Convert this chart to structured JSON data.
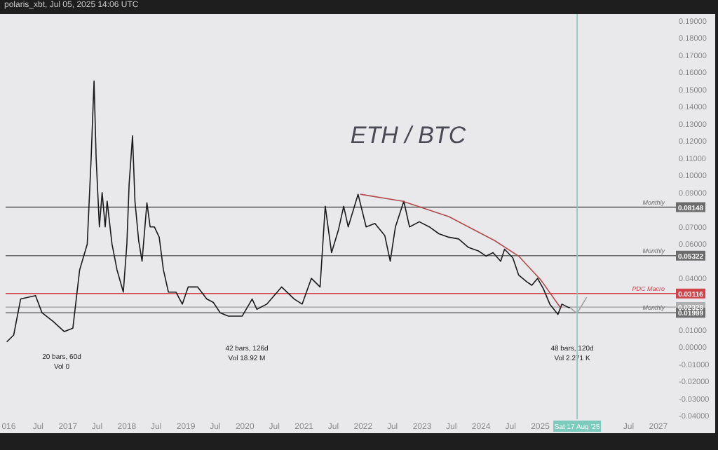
{
  "chart_data": {
    "type": "line",
    "title": "ETH / BTC",
    "xlim": [
      "2015-12-13",
      "2027-04-20"
    ],
    "xticks": [
      {
        "value": "2016-01-01",
        "label": "016"
      },
      {
        "value": "2016-07-01",
        "label": "Jul"
      },
      {
        "value": "2017-01-01",
        "label": "2017"
      },
      {
        "value": "2017-07-01",
        "label": "Jul"
      },
      {
        "value": "2018-01-01",
        "label": "2018"
      },
      {
        "value": "2018-07-01",
        "label": "Jul"
      },
      {
        "value": "2019-01-01",
        "label": "2019"
      },
      {
        "value": "2019-07-01",
        "label": "Jul"
      },
      {
        "value": "2020-01-01",
        "label": "2020"
      },
      {
        "value": "2020-07-01",
        "label": "Jul"
      },
      {
        "value": "2021-01-01",
        "label": "2021"
      },
      {
        "value": "2021-07-01",
        "label": "Jul"
      },
      {
        "value": "2022-01-01",
        "label": "2022"
      },
      {
        "value": "2022-07-01",
        "label": "Jul"
      },
      {
        "value": "2023-01-01",
        "label": "2023"
      },
      {
        "value": "2023-07-01",
        "label": "Jul"
      },
      {
        "value": "2024-01-01",
        "label": "2024"
      },
      {
        "value": "2024-07-01",
        "label": "Jul"
      },
      {
        "value": "2025-01-01",
        "label": "2025"
      },
      {
        "value": "2026-07-01",
        "label": "Jul"
      },
      {
        "value": "2027-01-01",
        "label": "2027"
      }
    ],
    "ylim": [
      -0.042,
      0.194
    ],
    "yticks": [
      {
        "value": 0.19,
        "label": "0.19000"
      },
      {
        "value": 0.18,
        "label": "0.18000"
      },
      {
        "value": 0.17,
        "label": "0.17000"
      },
      {
        "value": 0.16,
        "label": "0.16000"
      },
      {
        "value": 0.15,
        "label": "0.15000"
      },
      {
        "value": 0.14,
        "label": "0.14000"
      },
      {
        "value": 0.13,
        "label": "0.13000"
      },
      {
        "value": 0.12,
        "label": "0.12000"
      },
      {
        "value": 0.11,
        "label": "0.11000"
      },
      {
        "value": 0.1,
        "label": "0.10000"
      },
      {
        "value": 0.09,
        "label": "0.09000"
      },
      {
        "value": 0.07,
        "label": "0.07000"
      },
      {
        "value": 0.06,
        "label": "0.06000"
      },
      {
        "value": 0.04,
        "label": "0.04000"
      },
      {
        "value": 0.01,
        "label": "0.01000"
      },
      {
        "value": 0,
        "label": "0.00000"
      },
      {
        "value": -0.01,
        "label": "-0.01000"
      },
      {
        "value": -0.02,
        "label": "-0.02000"
      },
      {
        "value": -0.03,
        "label": "-0.03000"
      },
      {
        "value": -0.04,
        "label": "-0.04000"
      }
    ],
    "series": [
      {
        "color": "#1a1a1a",
        "x": [
          "2015-12-20",
          "2016-02-01",
          "2016-03-15",
          "2016-06-15",
          "2016-07-25",
          "2016-10-01",
          "2016-12-10",
          "2017-02-01",
          "2017-03-15",
          "2017-05-01",
          "2017-05-25",
          "2017-06-12",
          "2017-06-25",
          "2017-07-15",
          "2017-08-01",
          "2017-08-20",
          "2017-09-01",
          "2017-10-01",
          "2017-11-01",
          "2017-12-10",
          "2018-01-01",
          "2018-01-15",
          "2018-02-05",
          "2018-02-20",
          "2018-03-15",
          "2018-04-05",
          "2018-05-05",
          "2018-05-25",
          "2018-06-20",
          "2018-07-20",
          "2018-08-15",
          "2018-09-15",
          "2018-11-01",
          "2018-12-10",
          "2019-01-15",
          "2019-03-15",
          "2019-05-10",
          "2019-06-20",
          "2019-08-01",
          "2019-09-20",
          "2019-12-15",
          "2020-02-15",
          "2020-03-15",
          "2020-05-15",
          "2020-08-15",
          "2020-11-01",
          "2020-12-20",
          "2021-02-15",
          "2021-04-10",
          "2021-05-12",
          "2021-06-20",
          "2021-08-01",
          "2021-09-03",
          "2021-10-01",
          "2021-12-01",
          "2022-01-20",
          "2022-03-15",
          "2022-05-15",
          "2022-06-18",
          "2022-07-20",
          "2022-09-10",
          "2022-10-15",
          "2022-12-15",
          "2023-02-15",
          "2023-04-15",
          "2023-06-15",
          "2023-08-15",
          "2023-10-15",
          "2023-12-15",
          "2024-02-01",
          "2024-03-15",
          "2024-05-01",
          "2024-05-25",
          "2024-07-15",
          "2024-08-20",
          "2024-10-10",
          "2024-11-10",
          "2024-12-15",
          "2025-01-20",
          "2025-03-01",
          "2025-04-20",
          "2025-05-15",
          "2025-06-05",
          "2025-06-25",
          "2025-07-05"
        ],
        "values": [
          0.003,
          0.007,
          0.028,
          0.03,
          0.02,
          0.015,
          0.009,
          0.011,
          0.045,
          0.06,
          0.11,
          0.155,
          0.11,
          0.07,
          0.09,
          0.07,
          0.085,
          0.06,
          0.045,
          0.032,
          0.06,
          0.095,
          0.123,
          0.085,
          0.062,
          0.05,
          0.084,
          0.07,
          0.07,
          0.064,
          0.045,
          0.032,
          0.032,
          0.025,
          0.035,
          0.035,
          0.028,
          0.026,
          0.02,
          0.018,
          0.018,
          0.028,
          0.022,
          0.025,
          0.035,
          0.028,
          0.025,
          0.04,
          0.035,
          0.082,
          0.055,
          0.068,
          0.082,
          0.07,
          0.089,
          0.07,
          0.072,
          0.065,
          0.05,
          0.07,
          0.085,
          0.07,
          0.073,
          0.07,
          0.066,
          0.064,
          0.063,
          0.058,
          0.056,
          0.053,
          0.055,
          0.05,
          0.057,
          0.052,
          0.042,
          0.038,
          0.036,
          0.04,
          0.034,
          0.025,
          0.019,
          0.025,
          0.024,
          0.023,
          0.023
        ]
      },
      {
        "type": "line",
        "color": "#b24a4a",
        "x": [
          "2021-12-15",
          "2022-09-01",
          "2023-06-15",
          "2024-03-25",
          "2024-08-20",
          "2025-01-05",
          "2025-05-05"
        ],
        "values": [
          0.089,
          0.085,
          0.076,
          0.062,
          0.053,
          0.039,
          0.023
        ]
      },
      {
        "type": "line",
        "color": "#a0a0a0",
        "x": [
          "2025-07-05",
          "2025-08-10",
          "2025-08-25",
          "2025-10-15"
        ],
        "values": [
          0.023,
          0.02,
          0.021,
          0.029
        ]
      }
    ],
    "ref_lines": [
      {
        "axis": "y",
        "value": 0.08148,
        "label": "Monthly",
        "color": "#6b6b6b"
      },
      {
        "axis": "y",
        "value": 0.05322,
        "label": "Monthly",
        "color": "#6b6b6b"
      },
      {
        "axis": "y",
        "value": 0.03116,
        "label": "PDC Macro",
        "color": "#d0454c"
      },
      {
        "axis": "y",
        "value": 0.02328,
        "label": null,
        "color": "#b0b0b0"
      },
      {
        "axis": "y",
        "value": 0.01999,
        "label": "Monthly",
        "color": "#6b6b6b"
      },
      {
        "axis": "x",
        "value": "2025-08-17",
        "label": "Sat 17 Aug '25",
        "color": "#7ccbbd"
      }
    ],
    "annotations": [
      "polaris_xbt, Jul 05, 2025 14:06 UTC",
      "20 bars, 60d\nVol 0",
      "42 bars, 126d\nVol 18.92 M",
      "48 bars, 120d\nVol 2.271 K",
      {
        "text": "0.08148",
        "y": 0.08148
      },
      {
        "text": "0.05322",
        "y": 0.05322
      },
      {
        "text": "0.03116",
        "y": 0.03116
      },
      {
        "text": "0.02328",
        "y": 0.02328
      },
      {
        "text": "0.01999",
        "y": 0.01999
      }
    ],
    "grid": false
  }
}
